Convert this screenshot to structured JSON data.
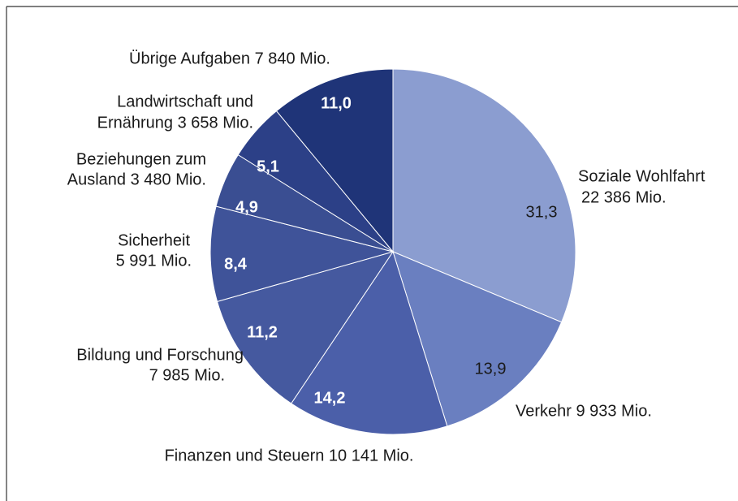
{
  "chart_data": {
    "type": "pie",
    "categories": [
      [
        "Soziale Wohlfahrt",
        "22 386 Mio."
      ],
      [
        "Verkehr 9 933 Mio."
      ],
      [
        "Finanzen und Steuern 10 141 Mio."
      ],
      [
        "Bildung und Forschung",
        "7 985 Mio."
      ],
      [
        "Sicherheit",
        "5 991 Mio."
      ],
      [
        "Beziehungen zum",
        "Ausland 3 480 Mio."
      ],
      [
        "Landwirtschaft und",
        "Ernährung 3 658 Mio."
      ],
      [
        "Übrige Aufgaben 7 840 Mio."
      ]
    ],
    "values": [
      31.3,
      13.9,
      14.2,
      11.2,
      8.4,
      4.9,
      5.1,
      11.0
    ],
    "value_labels": [
      "31,3",
      "13,9",
      "14,2",
      "11,2",
      "8,4",
      "4,9",
      "5,1",
      "11,0"
    ],
    "colors": [
      "#8b9dd0",
      "#6a7fc0",
      "#4b5fa9",
      "#45599f",
      "#3f5399",
      "#3a4e92",
      "#2c4087",
      "#1f3478"
    ]
  }
}
